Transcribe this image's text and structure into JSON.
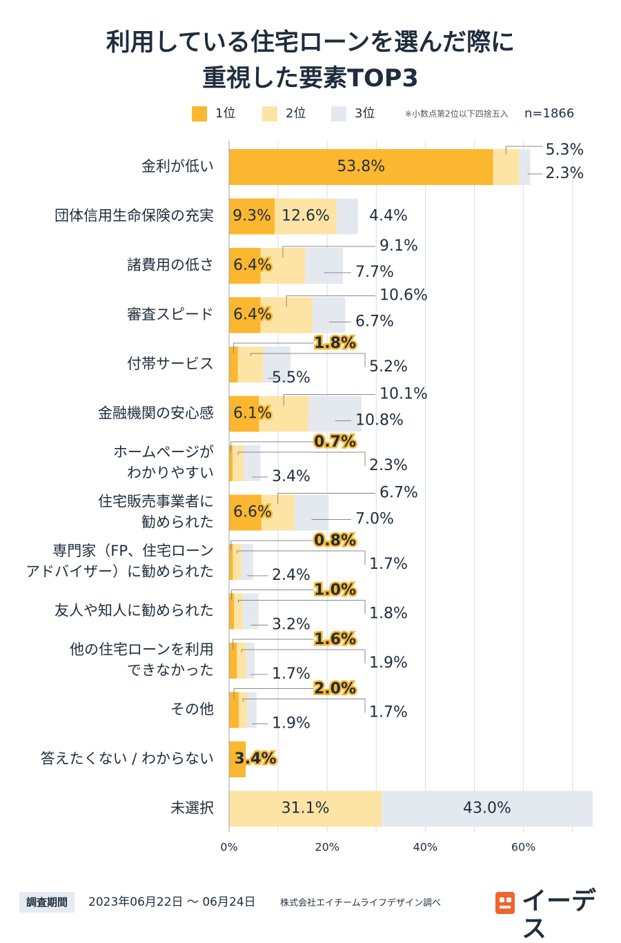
{
  "header": {
    "title_line1": "利用している住宅ローンを選んだ際に",
    "title_line2": "重視した要素TOP3"
  },
  "legend": {
    "items": [
      {
        "label": "1位",
        "color": "#fbb72f"
      },
      {
        "label": "2位",
        "color": "#fde4a4"
      },
      {
        "label": "3位",
        "color": "#e4e8ef"
      }
    ],
    "note": "※小数点第2位以下四捨五入",
    "n": "n=1866"
  },
  "chart_data": {
    "type": "bar",
    "orientation": "horizontal",
    "stacked": true,
    "categories": [
      "金利が低い",
      "団体信用生命保険の充実",
      "諸費用の低さ",
      "審査スピード",
      "付帯サービス",
      "金融機関の安心感",
      "ホームページが\nわかりやすい",
      "住宅販売事業者に\n勧められた",
      "専門家（FP、住宅ローン\nアドバイザー）に勧められた",
      "友人や知人に勧められた",
      "他の住宅ローンを利用\nできなかった",
      "その他",
      "答えたくない / わからない",
      "未選択"
    ],
    "series": [
      {
        "name": "1位",
        "values": [
          53.8,
          9.3,
          6.4,
          6.4,
          1.8,
          6.1,
          0.7,
          6.6,
          0.8,
          1.0,
          1.6,
          2.0,
          3.4,
          0
        ]
      },
      {
        "name": "2位",
        "values": [
          5.3,
          12.6,
          9.1,
          10.6,
          5.2,
          10.1,
          2.3,
          6.7,
          1.7,
          1.8,
          1.9,
          1.7,
          0,
          31.1
        ]
      },
      {
        "name": "3位",
        "values": [
          2.3,
          4.4,
          7.7,
          6.7,
          5.5,
          10.8,
          3.4,
          7.0,
          2.4,
          3.2,
          1.7,
          1.9,
          0,
          43.0
        ]
      }
    ],
    "x_ticks": [
      "0%",
      "20%",
      "40%",
      "60%"
    ],
    "xlim": [
      0,
      74
    ],
    "grid": true
  },
  "footer": {
    "period_label": "調査期間",
    "period": "2023年06月22日 〜 06月24日",
    "source": "株式会社エイチームライフデザイン調べ"
  },
  "logo": {
    "text": "イーデス"
  }
}
